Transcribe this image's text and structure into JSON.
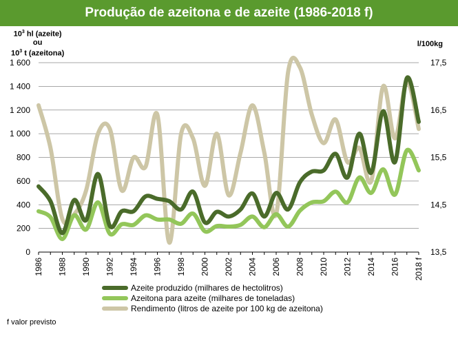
{
  "title": "Produção de azeitona e de azeite (1986-2018 f)",
  "left_axis_unit": {
    "line1_pre": "10",
    "line1_sup": "3",
    "line1_post": " hl (azeite)",
    "line2": "ou",
    "line3_pre": "10",
    "line3_sup": "3",
    "line3_post": " t (azeitona)"
  },
  "right_axis_unit": "l/100kg",
  "footnote": "f valor previsto",
  "colors": {
    "azeite": "#4a6b2a",
    "azeitona": "#93c65a",
    "rendimento": "#cdc6a6",
    "title_bg": "#5a9a2e"
  },
  "chart_data": {
    "type": "line",
    "x": [
      "1986",
      "1987",
      "1988",
      "1989",
      "1990",
      "1991",
      "1992",
      "1993",
      "1994",
      "1995",
      "1996",
      "1997",
      "1998",
      "1999",
      "2000",
      "2001",
      "2002",
      "2003",
      "2004",
      "2005",
      "2006",
      "2007",
      "2008",
      "2009",
      "2010",
      "2011",
      "2012",
      "2013",
      "2014",
      "2015",
      "2016",
      "2017",
      "2018 f"
    ],
    "x_tick_labels": [
      "1986",
      "1988",
      "1990",
      "1992",
      "1994",
      "1996",
      "1998",
      "2000",
      "2002",
      "2004",
      "2006",
      "2008",
      "2010",
      "2012",
      "2014",
      "2016",
      "2018 f"
    ],
    "y_left": {
      "min": 0,
      "max": 1600,
      "ticks": [
        "0",
        "200",
        "400",
        "600",
        "800",
        "1 000",
        "1 200",
        "1 400",
        "1 600"
      ],
      "tick_values": [
        0,
        200,
        400,
        600,
        800,
        1000,
        1200,
        1400,
        1600
      ]
    },
    "y_right": {
      "min": 13.5,
      "max": 17.5,
      "ticks": [
        "13,5",
        "14,5",
        "15,5",
        "16,5",
        "17,5"
      ],
      "tick_values": [
        13.5,
        14.5,
        15.5,
        16.5,
        17.5
      ]
    },
    "grid": true,
    "legend_position": "bottom",
    "series": [
      {
        "name": "Azeite produzido (milhares de hectolitros)",
        "axis": "left",
        "color_key": "azeite",
        "values": [
          555,
          430,
          160,
          440,
          270,
          660,
          220,
          345,
          345,
          470,
          450,
          430,
          360,
          510,
          250,
          340,
          300,
          360,
          495,
          300,
          500,
          360,
          590,
          680,
          690,
          830,
          630,
          1000,
          670,
          1190,
          760,
          1470,
          1100
        ]
      },
      {
        "name": "Azeitona para azeite (milhares de toneladas)",
        "axis": "left",
        "color_key": "azeitona",
        "values": [
          345,
          295,
          110,
          310,
          190,
          420,
          155,
          235,
          230,
          310,
          275,
          275,
          240,
          325,
          175,
          220,
          215,
          230,
          300,
          210,
          320,
          215,
          350,
          420,
          430,
          510,
          420,
          630,
          500,
          700,
          485,
          860,
          690
        ]
      },
      {
        "name": "Rendimento (litros de azeite por 100 kg de azeitona)",
        "axis": "right",
        "color_key": "rendimento",
        "values": [
          16.6,
          15.7,
          14.2,
          14.3,
          14.8,
          16.0,
          16.1,
          14.8,
          15.5,
          15.3,
          16.4,
          13.7,
          16.0,
          15.9,
          14.9,
          16.0,
          14.7,
          15.6,
          16.6,
          15.6,
          14.3,
          17.3,
          17.4,
          16.4,
          15.8,
          16.3,
          15.4,
          15.7,
          15.0,
          17.0,
          15.9,
          17.1,
          16.1
        ]
      }
    ]
  }
}
